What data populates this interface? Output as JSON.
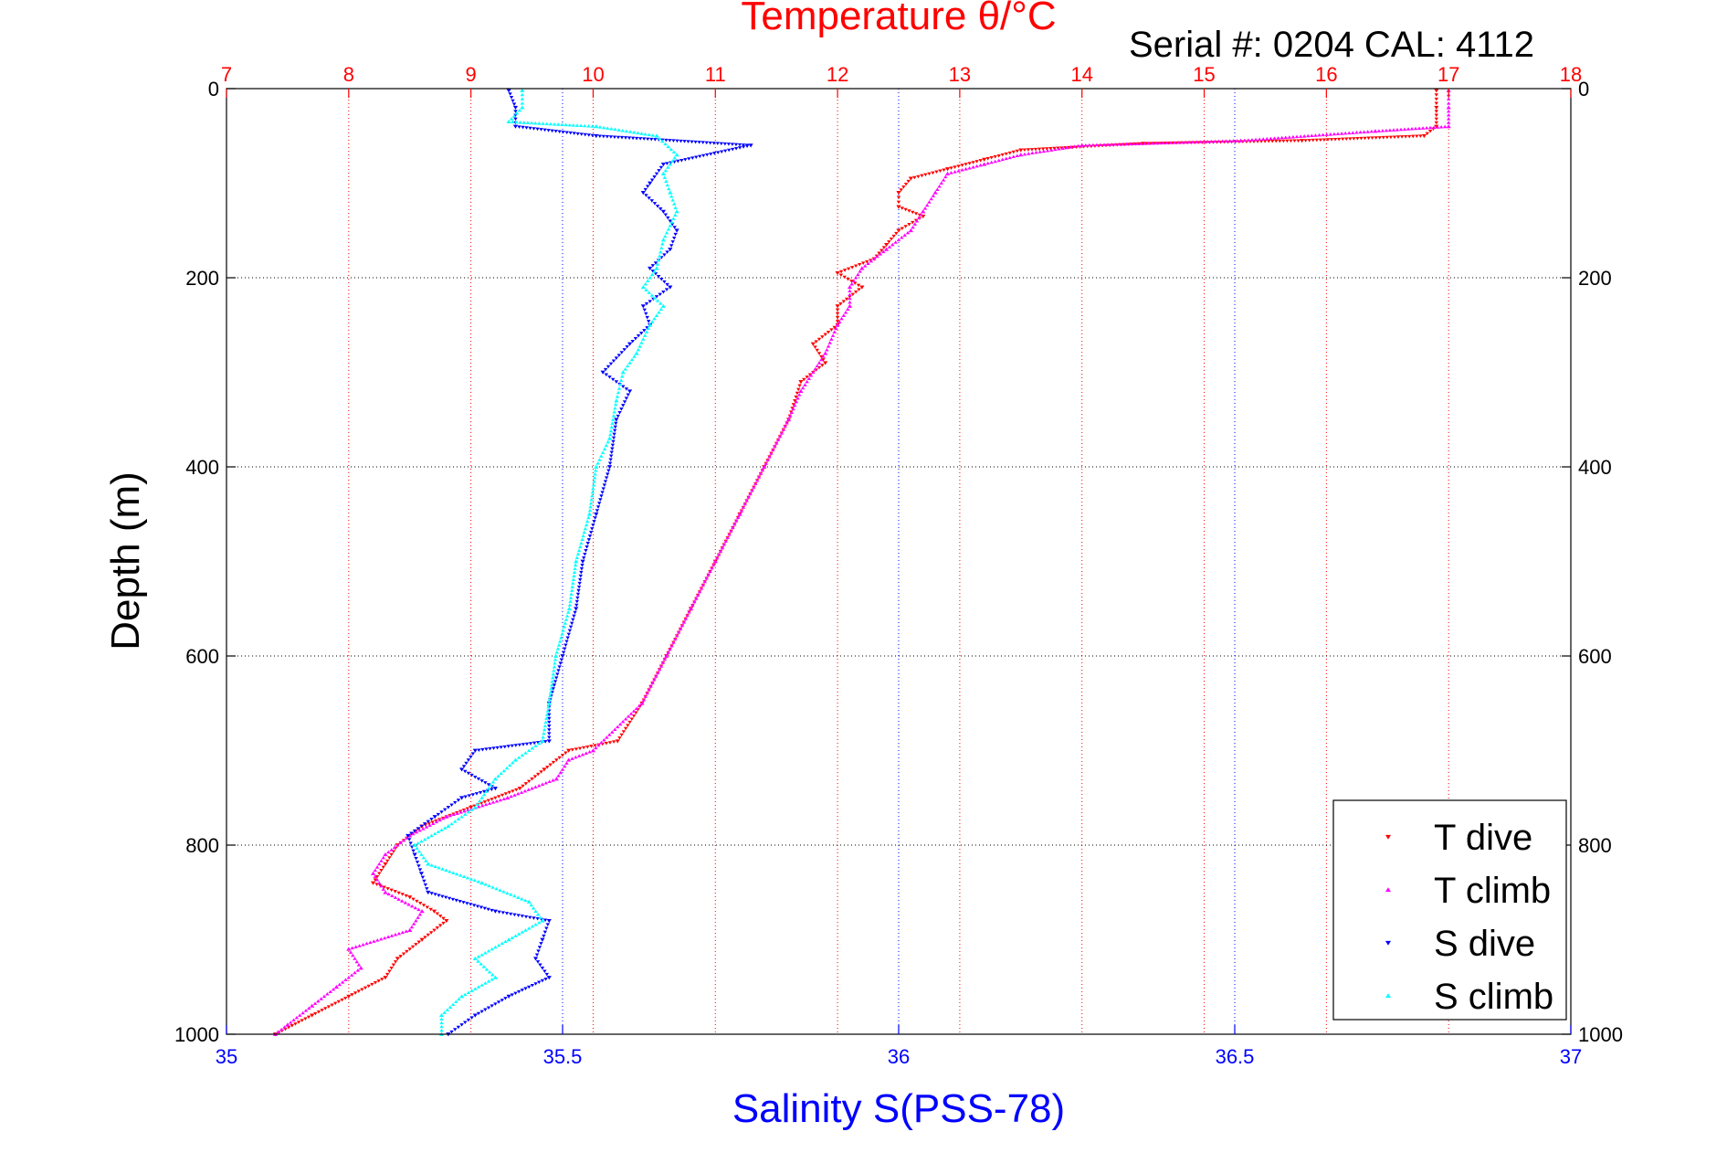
{
  "chart_data": {
    "type": "scatter",
    "title": "Temperature θ/°C",
    "subtitle": "Serial #: 0204  CAL: 4112",
    "ylabel": "Depth (m)",
    "xlabel": "Salinity S(PSS-78)",
    "ylim": [
      0,
      1000
    ],
    "y_reversed": true,
    "y_ticks": [
      0,
      200,
      400,
      600,
      800,
      1000
    ],
    "temperature_axis": {
      "position": "top",
      "range": [
        7,
        18
      ],
      "ticks": [
        7,
        8,
        9,
        10,
        11,
        12,
        13,
        14,
        15,
        16,
        17,
        18
      ],
      "color": "#ff0000",
      "grid": true
    },
    "salinity_axis": {
      "position": "bottom",
      "range": [
        35,
        37
      ],
      "ticks": [
        35,
        35.5,
        36,
        36.5,
        37
      ],
      "color": "#0000ff",
      "grid": true
    },
    "legend_position": "bottom-right",
    "series": [
      {
        "name": "T dive",
        "axis": "temperature",
        "color": "#ff0000",
        "marker": "triangle-down",
        "points": [
          [
            16.9,
            2
          ],
          [
            16.9,
            20
          ],
          [
            16.9,
            40
          ],
          [
            16.8,
            50
          ],
          [
            15.8,
            55
          ],
          [
            14.5,
            58
          ],
          [
            13.5,
            65
          ],
          [
            13.2,
            75
          ],
          [
            12.9,
            85
          ],
          [
            12.6,
            95
          ],
          [
            12.5,
            110
          ],
          [
            12.5,
            125
          ],
          [
            12.7,
            135
          ],
          [
            12.5,
            150
          ],
          [
            12.4,
            165
          ],
          [
            12.3,
            180
          ],
          [
            12.0,
            195
          ],
          [
            12.2,
            210
          ],
          [
            12.0,
            230
          ],
          [
            12.0,
            250
          ],
          [
            11.8,
            270
          ],
          [
            11.9,
            290
          ],
          [
            11.7,
            310
          ],
          [
            11.6,
            350
          ],
          [
            11.4,
            400
          ],
          [
            11.2,
            450
          ],
          [
            11.0,
            500
          ],
          [
            10.8,
            550
          ],
          [
            10.6,
            600
          ],
          [
            10.4,
            650
          ],
          [
            10.2,
            690
          ],
          [
            9.8,
            700
          ],
          [
            9.6,
            720
          ],
          [
            9.4,
            740
          ],
          [
            9.0,
            760
          ],
          [
            8.6,
            780
          ],
          [
            8.4,
            800
          ],
          [
            8.3,
            820
          ],
          [
            8.2,
            840
          ],
          [
            8.5,
            855
          ],
          [
            8.7,
            870
          ],
          [
            8.8,
            880
          ],
          [
            8.6,
            900
          ],
          [
            8.4,
            920
          ],
          [
            8.3,
            940
          ],
          [
            8.0,
            960
          ],
          [
            7.7,
            980
          ],
          [
            7.4,
            1000
          ]
        ]
      },
      {
        "name": "T climb",
        "axis": "temperature",
        "color": "#ff00ff",
        "marker": "triangle-up",
        "points": [
          [
            17.0,
            2
          ],
          [
            17.0,
            20
          ],
          [
            17.0,
            40
          ],
          [
            16.4,
            45
          ],
          [
            15.3,
            55
          ],
          [
            14.0,
            60
          ],
          [
            13.5,
            70
          ],
          [
            13.2,
            80
          ],
          [
            12.9,
            90
          ],
          [
            12.8,
            110
          ],
          [
            12.7,
            130
          ],
          [
            12.6,
            150
          ],
          [
            12.4,
            170
          ],
          [
            12.2,
            190
          ],
          [
            12.1,
            210
          ],
          [
            12.1,
            230
          ],
          [
            12.0,
            250
          ],
          [
            11.9,
            280
          ],
          [
            11.7,
            320
          ],
          [
            11.6,
            350
          ],
          [
            11.4,
            400
          ],
          [
            11.2,
            450
          ],
          [
            11.0,
            500
          ],
          [
            10.8,
            550
          ],
          [
            10.6,
            600
          ],
          [
            10.4,
            650
          ],
          [
            10.0,
            700
          ],
          [
            9.8,
            710
          ],
          [
            9.7,
            730
          ],
          [
            9.3,
            750
          ],
          [
            8.8,
            770
          ],
          [
            8.5,
            790
          ],
          [
            8.3,
            810
          ],
          [
            8.2,
            830
          ],
          [
            8.3,
            850
          ],
          [
            8.6,
            870
          ],
          [
            8.5,
            890
          ],
          [
            8.0,
            910
          ],
          [
            8.1,
            930
          ],
          [
            7.9,
            950
          ],
          [
            7.7,
            970
          ],
          [
            7.5,
            990
          ],
          [
            7.4,
            1000
          ]
        ]
      },
      {
        "name": "S dive",
        "axis": "salinity",
        "color": "#0000ff",
        "marker": "triangle-down",
        "points": [
          [
            35.42,
            2
          ],
          [
            35.43,
            20
          ],
          [
            35.43,
            40
          ],
          [
            35.55,
            50
          ],
          [
            35.78,
            60
          ],
          [
            35.65,
            80
          ],
          [
            35.63,
            100
          ],
          [
            35.62,
            110
          ],
          [
            35.65,
            130
          ],
          [
            35.67,
            150
          ],
          [
            35.66,
            170
          ],
          [
            35.63,
            190
          ],
          [
            35.66,
            210
          ],
          [
            35.62,
            230
          ],
          [
            35.63,
            250
          ],
          [
            35.6,
            270
          ],
          [
            35.56,
            300
          ],
          [
            35.6,
            320
          ],
          [
            35.58,
            350
          ],
          [
            35.57,
            400
          ],
          [
            35.55,
            450
          ],
          [
            35.53,
            500
          ],
          [
            35.52,
            550
          ],
          [
            35.5,
            600
          ],
          [
            35.48,
            650
          ],
          [
            35.48,
            690
          ],
          [
            35.37,
            700
          ],
          [
            35.35,
            720
          ],
          [
            35.4,
            740
          ],
          [
            35.35,
            750
          ],
          [
            35.31,
            770
          ],
          [
            35.27,
            790
          ],
          [
            35.28,
            810
          ],
          [
            35.29,
            830
          ],
          [
            35.3,
            850
          ],
          [
            35.4,
            870
          ],
          [
            35.48,
            880
          ],
          [
            35.47,
            900
          ],
          [
            35.46,
            920
          ],
          [
            35.48,
            940
          ],
          [
            35.42,
            960
          ],
          [
            35.37,
            980
          ],
          [
            35.33,
            1000
          ]
        ]
      },
      {
        "name": "S climb",
        "axis": "salinity",
        "color": "#00ffff",
        "marker": "triangle-up",
        "points": [
          [
            35.44,
            2
          ],
          [
            35.44,
            20
          ],
          [
            35.42,
            35
          ],
          [
            35.55,
            40
          ],
          [
            35.64,
            50
          ],
          [
            35.67,
            70
          ],
          [
            35.65,
            90
          ],
          [
            35.66,
            110
          ],
          [
            35.67,
            130
          ],
          [
            35.65,
            160
          ],
          [
            35.64,
            190
          ],
          [
            35.62,
            210
          ],
          [
            35.65,
            230
          ],
          [
            35.63,
            250
          ],
          [
            35.61,
            280
          ],
          [
            35.59,
            300
          ],
          [
            35.58,
            330
          ],
          [
            35.57,
            370
          ],
          [
            35.55,
            400
          ],
          [
            35.54,
            450
          ],
          [
            35.52,
            500
          ],
          [
            35.51,
            550
          ],
          [
            35.49,
            600
          ],
          [
            35.48,
            650
          ],
          [
            35.47,
            690
          ],
          [
            35.43,
            710
          ],
          [
            35.4,
            730
          ],
          [
            35.37,
            760
          ],
          [
            35.33,
            780
          ],
          [
            35.28,
            800
          ],
          [
            35.3,
            820
          ],
          [
            35.38,
            840
          ],
          [
            35.45,
            860
          ],
          [
            35.47,
            880
          ],
          [
            35.42,
            900
          ],
          [
            35.37,
            920
          ],
          [
            35.4,
            940
          ],
          [
            35.35,
            960
          ],
          [
            35.32,
            980
          ],
          [
            35.32,
            1000
          ]
        ]
      }
    ]
  }
}
